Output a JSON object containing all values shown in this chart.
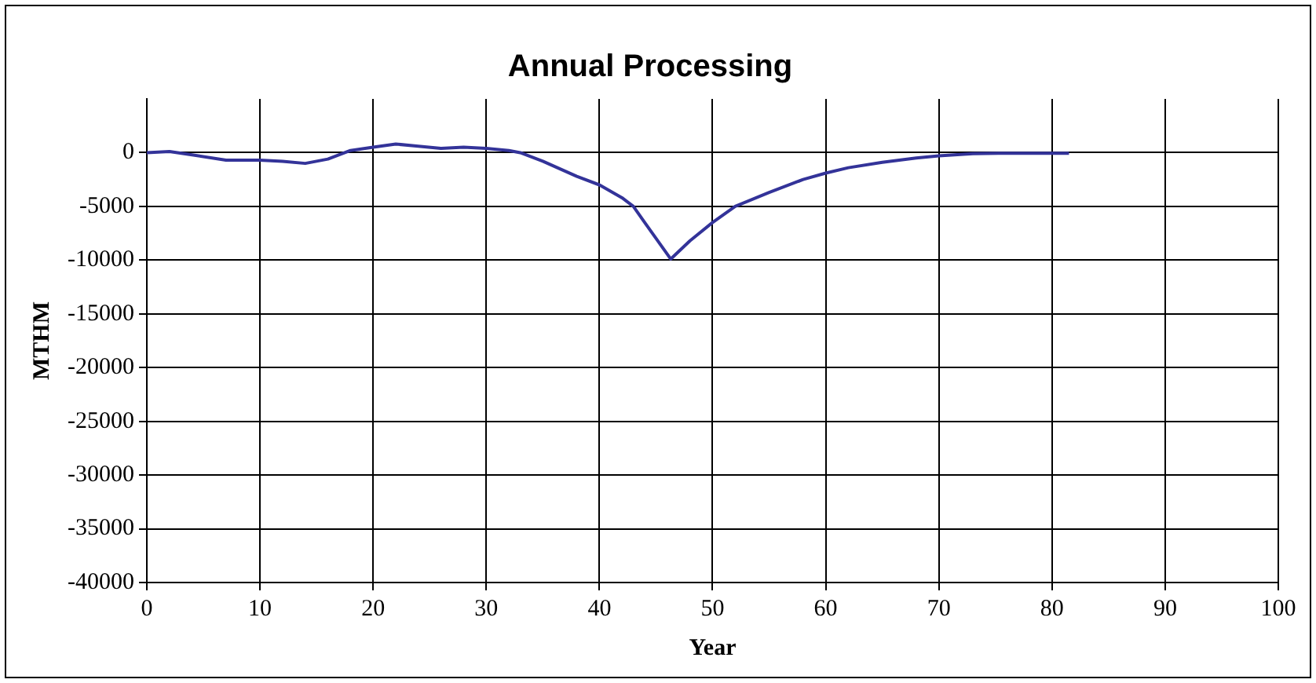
{
  "chart_data": {
    "type": "line",
    "title": "Annual Processing",
    "xlabel": "Year",
    "ylabel": "MTHM",
    "x": [
      0,
      2,
      4,
      7,
      10,
      12,
      14,
      16,
      18,
      20,
      22,
      24,
      26,
      28,
      30,
      32,
      33,
      35,
      38,
      40,
      42,
      43,
      44,
      46.3,
      48,
      50,
      52,
      55,
      58,
      60,
      62,
      65,
      68,
      70,
      73,
      76,
      81.5
    ],
    "series": [
      {
        "color": "#333399",
        "values": [
          0,
          100,
          -200,
          -700,
          -700,
          -800,
          -1000,
          -600,
          200,
          500,
          800,
          600,
          400,
          500,
          400,
          200,
          0,
          -800,
          -2200,
          -3000,
          -4200,
          -5000,
          -6500,
          -9900,
          -8200,
          -6500,
          -5000,
          -3700,
          -2500,
          -1900,
          -1400,
          -900,
          -500,
          -300,
          -100,
          -50,
          -50
        ]
      }
    ],
    "xlim": [
      0,
      100
    ],
    "xticks": [
      0,
      10,
      20,
      30,
      40,
      50,
      60,
      70,
      80,
      90,
      100
    ],
    "ylim": [
      -40000,
      5000
    ],
    "yticks": [
      -40000,
      -35000,
      -30000,
      -25000,
      -20000,
      -15000,
      -10000,
      -5000,
      0
    ],
    "grid": true,
    "legend": false,
    "marker": "none",
    "line_style": "solid"
  }
}
